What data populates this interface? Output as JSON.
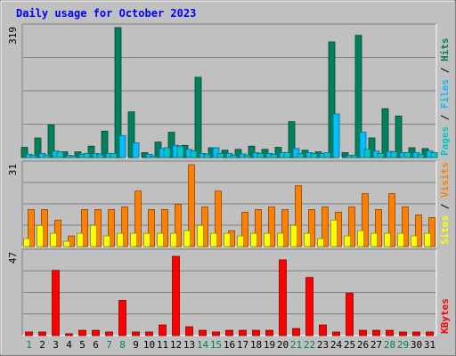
{
  "chart_data": [
    {
      "type": "bar",
      "title": "Daily usage for October 2023",
      "categories": [
        "1",
        "2",
        "3",
        "4",
        "5",
        "6",
        "7",
        "8",
        "9",
        "10",
        "11",
        "12",
        "13",
        "14",
        "15",
        "16",
        "17",
        "18",
        "19",
        "20",
        "21",
        "22",
        "23",
        "24",
        "25",
        "26",
        "27",
        "28",
        "29",
        "30",
        "31"
      ],
      "weekend_days": [
        "1",
        "7",
        "8",
        "14",
        "15",
        "21",
        "22",
        "28",
        "29"
      ],
      "ymax_label": "319",
      "ylim": [
        0,
        319
      ],
      "legend": [
        "Hits",
        "Files",
        "Pages"
      ],
      "series": [
        {
          "name": "Hits",
          "color": "#00805c",
          "values": [
            25,
            48,
            80,
            14,
            14,
            28,
            65,
            319,
            112,
            12,
            38,
            62,
            30,
            197,
            24,
            18,
            20,
            28,
            20,
            25,
            88,
            18,
            14,
            284,
            12,
            300,
            48,
            120,
            102,
            24,
            22
          ]
        },
        {
          "name": "Files",
          "color": "#00c0ff",
          "values": [
            8,
            10,
            16,
            5,
            8,
            10,
            10,
            54,
            36,
            8,
            22,
            30,
            20,
            10,
            24,
            10,
            9,
            12,
            10,
            12,
            22,
            12,
            10,
            107,
            5,
            62,
            16,
            15,
            12,
            12,
            16
          ]
        },
        {
          "name": "Pages",
          "color": "#00c8c8",
          "values": [
            6,
            6,
            14,
            4,
            10,
            8,
            10,
            0,
            0,
            4,
            24,
            28,
            16,
            8,
            10,
            6,
            6,
            10,
            8,
            12,
            10,
            10,
            12,
            0,
            6,
            20,
            10,
            14,
            12,
            8,
            12
          ]
        }
      ]
    },
    {
      "type": "bar",
      "ymax_label": "31",
      "ylim": [
        0,
        31
      ],
      "legend": [
        "Visits",
        "Sites"
      ],
      "series": [
        {
          "name": "Visits",
          "color": "#ff8000",
          "values": [
            14,
            14,
            10,
            4,
            14,
            14,
            14,
            15,
            21,
            14,
            14,
            16,
            31,
            15,
            21,
            6,
            13,
            14,
            15,
            14,
            23,
            14,
            15,
            13,
            15,
            20,
            14,
            20,
            15,
            12,
            11
          ]
        },
        {
          "name": "Sites",
          "color": "#ffff00",
          "values": [
            3,
            8,
            5,
            2,
            5,
            8,
            4,
            5,
            5,
            5,
            5,
            5,
            6,
            8,
            5,
            5,
            4,
            5,
            5,
            5,
            8,
            5,
            3,
            10,
            4,
            6,
            5,
            5,
            5,
            4,
            5
          ]
        }
      ]
    },
    {
      "type": "bar",
      "ymax_label": "47",
      "ylim": [
        0,
        47
      ],
      "legend": [
        "KBytes"
      ],
      "series": [
        {
          "name": "KBytes",
          "color": "#ff0000",
          "values": [
            2,
            2,
            37,
            1,
            3,
            3,
            2,
            20,
            2,
            2,
            6,
            45,
            5,
            3,
            2,
            3,
            3,
            3,
            3,
            43,
            4,
            33,
            6,
            2,
            24,
            3,
            3,
            3,
            2,
            2,
            2
          ]
        }
      ]
    }
  ]
}
